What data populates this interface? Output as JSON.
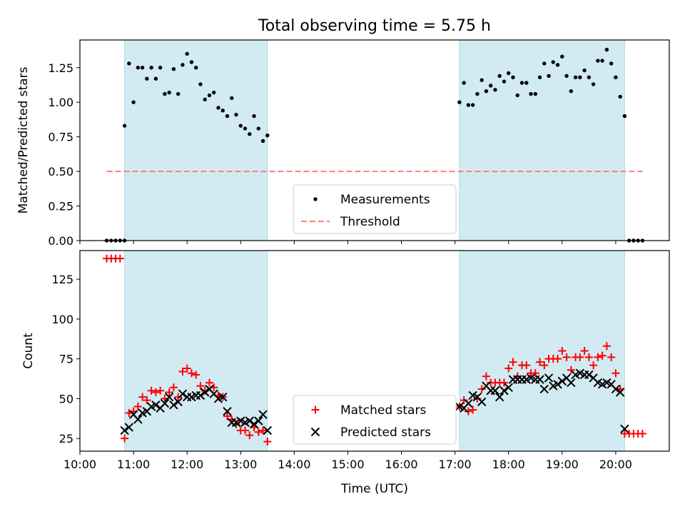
{
  "chart_data": [
    {
      "type": "scatter",
      "title": "Total observing time = 5.75 h",
      "ylabel": "Matched/Predicted stars",
      "xlabel": "",
      "xlim": [
        "10:00",
        "21:00"
      ],
      "ylim": [
        0,
        1.45
      ],
      "yticks": [
        0.0,
        0.25,
        0.5,
        0.75,
        1.0,
        1.25
      ],
      "ytick_labels": [
        "0.00",
        "0.25",
        "0.50",
        "0.75",
        "1.00",
        "1.25"
      ],
      "shaded_intervals": [
        [
          "10:50",
          "13:30"
        ],
        [
          "17:05",
          "20:10"
        ]
      ],
      "shade_color": "#add8e6",
      "legend_position": "lower center",
      "series": [
        {
          "name": "Measurements",
          "style": "dot",
          "color": "#000000",
          "points": [
            [
              "10:30",
              0
            ],
            [
              "10:35",
              0
            ],
            [
              "10:40",
              0
            ],
            [
              "10:45",
              0
            ],
            [
              "10:50",
              0
            ],
            [
              "10:50",
              0.83
            ],
            [
              "10:55",
              1.28
            ],
            [
              "11:00",
              1.0
            ],
            [
              "11:05",
              1.25
            ],
            [
              "11:10",
              1.25
            ],
            [
              "11:15",
              1.17
            ],
            [
              "11:20",
              1.25
            ],
            [
              "11:25",
              1.17
            ],
            [
              "11:30",
              1.25
            ],
            [
              "11:35",
              1.06
            ],
            [
              "11:40",
              1.07
            ],
            [
              "11:45",
              1.24
            ],
            [
              "11:50",
              1.06
            ],
            [
              "11:55",
              1.27
            ],
            [
              "12:00",
              1.35
            ],
            [
              "12:05",
              1.29
            ],
            [
              "12:10",
              1.25
            ],
            [
              "12:15",
              1.13
            ],
            [
              "12:20",
              1.02
            ],
            [
              "12:25",
              1.05
            ],
            [
              "12:30",
              1.07
            ],
            [
              "12:35",
              0.96
            ],
            [
              "12:40",
              0.94
            ],
            [
              "12:45",
              0.9
            ],
            [
              "12:50",
              1.03
            ],
            [
              "12:55",
              0.91
            ],
            [
              "13:00",
              0.83
            ],
            [
              "13:05",
              0.81
            ],
            [
              "13:10",
              0.77
            ],
            [
              "13:15",
              0.9
            ],
            [
              "13:20",
              0.81
            ],
            [
              "13:25",
              0.72
            ],
            [
              "13:30",
              0.76
            ],
            [
              "17:05",
              1.0
            ],
            [
              "17:10",
              1.14
            ],
            [
              "17:15",
              0.98
            ],
            [
              "17:20",
              0.98
            ],
            [
              "17:25",
              1.06
            ],
            [
              "17:30",
              1.16
            ],
            [
              "17:35",
              1.08
            ],
            [
              "17:40",
              1.12
            ],
            [
              "17:45",
              1.09
            ],
            [
              "17:50",
              1.19
            ],
            [
              "17:55",
              1.15
            ],
            [
              "18:00",
              1.21
            ],
            [
              "18:05",
              1.18
            ],
            [
              "18:10",
              1.05
            ],
            [
              "18:15",
              1.14
            ],
            [
              "18:20",
              1.14
            ],
            [
              "18:25",
              1.06
            ],
            [
              "18:30",
              1.06
            ],
            [
              "18:35",
              1.18
            ],
            [
              "18:40",
              1.28
            ],
            [
              "18:45",
              1.19
            ],
            [
              "18:50",
              1.29
            ],
            [
              "18:55",
              1.27
            ],
            [
              "19:00",
              1.33
            ],
            [
              "19:05",
              1.19
            ],
            [
              "19:10",
              1.08
            ],
            [
              "19:15",
              1.18
            ],
            [
              "19:20",
              1.18
            ],
            [
              "19:25",
              1.23
            ],
            [
              "19:30",
              1.18
            ],
            [
              "19:35",
              1.13
            ],
            [
              "19:40",
              1.3
            ],
            [
              "19:45",
              1.3
            ],
            [
              "19:50",
              1.38
            ],
            [
              "19:55",
              1.28
            ],
            [
              "20:00",
              1.18
            ],
            [
              "20:05",
              1.04
            ],
            [
              "20:10",
              0.9
            ],
            [
              "20:15",
              0
            ],
            [
              "20:20",
              0
            ],
            [
              "20:25",
              0
            ],
            [
              "20:30",
              0
            ]
          ]
        },
        {
          "name": "Threshold",
          "style": "dashed-line",
          "color": "#ff7f7f",
          "points": [
            [
              "10:30",
              0.5
            ],
            [
              "20:30",
              0.5
            ]
          ]
        }
      ]
    },
    {
      "type": "scatter",
      "title": "",
      "ylabel": "Count",
      "xlabel": "Time (UTC)",
      "xlim": [
        "10:00",
        "21:00"
      ],
      "ylim": [
        17,
        143
      ],
      "yticks": [
        25,
        50,
        75,
        100,
        125
      ],
      "ytick_labels": [
        "25",
        "50",
        "75",
        "100",
        "125"
      ],
      "xticks": [
        "10:00",
        "11:00",
        "12:00",
        "13:00",
        "14:00",
        "15:00",
        "16:00",
        "17:00",
        "18:00",
        "19:00",
        "20:00"
      ],
      "xtick_labels": [
        "10:00",
        "11:00",
        "12:00",
        "13:00",
        "14:00",
        "15:00",
        "16:00",
        "17:00",
        "18:00",
        "19:00",
        "20:00"
      ],
      "shaded_intervals": [
        [
          "10:50",
          "13:30"
        ],
        [
          "17:05",
          "20:10"
        ]
      ],
      "shade_color": "#add8e6",
      "legend_position": "lower center",
      "series": [
        {
          "name": "Matched stars",
          "style": "plus",
          "color": "#ff0000",
          "points": [
            [
              "10:30",
              138
            ],
            [
              "10:35",
              138
            ],
            [
              "10:40",
              138
            ],
            [
              "10:45",
              138
            ],
            [
              "10:50",
              25
            ],
            [
              "10:55",
              41
            ],
            [
              "11:00",
              42
            ],
            [
              "11:05",
              45
            ],
            [
              "11:10",
              51
            ],
            [
              "11:15",
              49
            ],
            [
              "11:20",
              55
            ],
            [
              "11:25",
              54
            ],
            [
              "11:30",
              55
            ],
            [
              "11:35",
              50
            ],
            [
              "11:40",
              54
            ],
            [
              "11:45",
              57
            ],
            [
              "11:50",
              51
            ],
            [
              "11:55",
              67
            ],
            [
              "12:00",
              69
            ],
            [
              "12:05",
              66
            ],
            [
              "12:10",
              65
            ],
            [
              "12:15",
              58
            ],
            [
              "12:20",
              55
            ],
            [
              "12:25",
              60
            ],
            [
              "12:30",
              57
            ],
            [
              "12:35",
              52
            ],
            [
              "12:40",
              51
            ],
            [
              "12:45",
              39
            ],
            [
              "12:50",
              37
            ],
            [
              "12:55",
              34
            ],
            [
              "13:00",
              30
            ],
            [
              "13:05",
              30
            ],
            [
              "13:10",
              27
            ],
            [
              "13:15",
              32
            ],
            [
              "13:20",
              29
            ],
            [
              "13:25",
              30
            ],
            [
              "13:30",
              23
            ],
            [
              "17:05",
              45
            ],
            [
              "17:10",
              49
            ],
            [
              "17:15",
              42
            ],
            [
              "17:20",
              43
            ],
            [
              "17:25",
              50
            ],
            [
              "17:30",
              56
            ],
            [
              "17:35",
              64
            ],
            [
              "17:40",
              60
            ],
            [
              "17:45",
              60
            ],
            [
              "17:50",
              60
            ],
            [
              "17:55",
              60
            ],
            [
              "18:00",
              69
            ],
            [
              "18:05",
              73
            ],
            [
              "18:10",
              64
            ],
            [
              "18:15",
              71
            ],
            [
              "18:20",
              71
            ],
            [
              "18:25",
              66
            ],
            [
              "18:30",
              66
            ],
            [
              "18:35",
              73
            ],
            [
              "18:40",
              71
            ],
            [
              "18:45",
              75
            ],
            [
              "18:50",
              75
            ],
            [
              "18:55",
              75
            ],
            [
              "19:00",
              80
            ],
            [
              "19:05",
              76
            ],
            [
              "19:10",
              68
            ],
            [
              "19:15",
              76
            ],
            [
              "19:20",
              76
            ],
            [
              "19:25",
              80
            ],
            [
              "19:30",
              76
            ],
            [
              "19:35",
              71
            ],
            [
              "19:40",
              76
            ],
            [
              "19:45",
              77
            ],
            [
              "19:50",
              83
            ],
            [
              "19:55",
              76
            ],
            [
              "20:00",
              66
            ],
            [
              "20:05",
              56
            ],
            [
              "20:10",
              28
            ],
            [
              "20:15",
              28
            ],
            [
              "20:20",
              28
            ],
            [
              "20:25",
              28
            ],
            [
              "20:30",
              28
            ]
          ]
        },
        {
          "name": "Predicted stars",
          "style": "x",
          "color": "#000000",
          "points": [
            [
              "10:50",
              30
            ],
            [
              "10:55",
              32
            ],
            [
              "11:00",
              40
            ],
            [
              "11:05",
              37
            ],
            [
              "11:10",
              41
            ],
            [
              "11:15",
              42
            ],
            [
              "11:20",
              45
            ],
            [
              "11:25",
              46
            ],
            [
              "11:30",
              44
            ],
            [
              "11:35",
              47
            ],
            [
              "11:40",
              51
            ],
            [
              "11:45",
              46
            ],
            [
              "11:50",
              48
            ],
            [
              "11:55",
              53
            ],
            [
              "12:00",
              51
            ],
            [
              "12:05",
              51
            ],
            [
              "12:10",
              52
            ],
            [
              "12:15",
              52
            ],
            [
              "12:20",
              54
            ],
            [
              "12:25",
              56
            ],
            [
              "12:30",
              53
            ],
            [
              "12:35",
              50
            ],
            [
              "12:40",
              51
            ],
            [
              "12:45",
              42
            ],
            [
              "12:50",
              35
            ],
            [
              "12:55",
              35
            ],
            [
              "13:00",
              36
            ],
            [
              "13:05",
              35
            ],
            [
              "13:10",
              36
            ],
            [
              "13:15",
              34
            ],
            [
              "13:20",
              36
            ],
            [
              "13:25",
              40
            ],
            [
              "13:30",
              30
            ],
            [
              "17:05",
              45
            ],
            [
              "17:10",
              44
            ],
            [
              "17:15",
              47
            ],
            [
              "17:20",
              52
            ],
            [
              "17:25",
              51
            ],
            [
              "17:30",
              48
            ],
            [
              "17:35",
              58
            ],
            [
              "17:40",
              55
            ],
            [
              "17:45",
              55
            ],
            [
              "17:50",
              51
            ],
            [
              "17:55",
              55
            ],
            [
              "18:00",
              57
            ],
            [
              "18:05",
              62
            ],
            [
              "18:10",
              62
            ],
            [
              "18:15",
              62
            ],
            [
              "18:20",
              62
            ],
            [
              "18:25",
              63
            ],
            [
              "18:30",
              62
            ],
            [
              "18:35",
              62
            ],
            [
              "18:40",
              56
            ],
            [
              "18:45",
              63
            ],
            [
              "18:50",
              58
            ],
            [
              "18:55",
              59
            ],
            [
              "19:00",
              61
            ],
            [
              "19:05",
              63
            ],
            [
              "19:10",
              60
            ],
            [
              "19:15",
              65
            ],
            [
              "19:20",
              66
            ],
            [
              "19:25",
              65
            ],
            [
              "19:30",
              65
            ],
            [
              "19:35",
              63
            ],
            [
              "19:40",
              60
            ],
            [
              "19:45",
              59
            ],
            [
              "19:50",
              60
            ],
            [
              "19:55",
              59
            ],
            [
              "20:00",
              56
            ],
            [
              "20:05",
              54
            ],
            [
              "20:10",
              31
            ]
          ]
        }
      ]
    }
  ]
}
